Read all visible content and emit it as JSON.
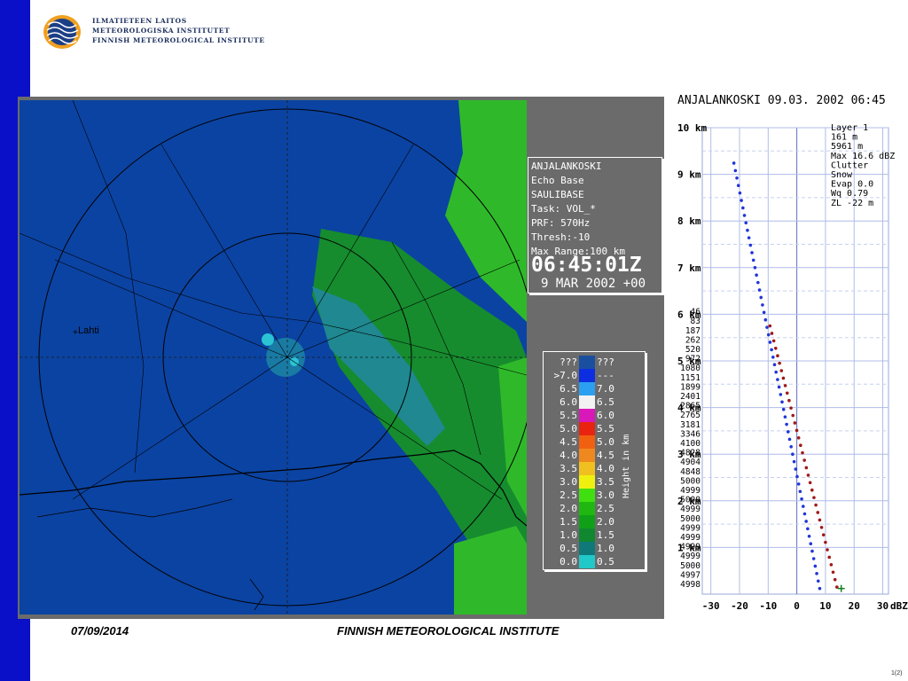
{
  "header": {
    "inst_fi": "ILMATIETEEN LAITOS",
    "inst_sv": "METEOROLOGISKA INSTITUTET",
    "inst_en": "FINNISH METEOROLOGICAL INSTITUTE"
  },
  "radar": {
    "place_label": "Lahti",
    "info": {
      "station": "ANJALANKOSKI",
      "product": "Echo Base",
      "product_id": "SAULIBASE",
      "task": "Task: VOL_*",
      "prf": "PRF: 570Hz",
      "thresh": "Thresh:-10",
      "range": "Max Range:100 km",
      "time": "06:45:01Z",
      "date": "9 MAR 2002 +00"
    },
    "legend": {
      "caption": "Height in km",
      "rows": [
        {
          "left": "???",
          "color": "#1a4fa0",
          "right": "???"
        },
        {
          "left": ">7.0",
          "color": "#0c2ee0",
          "right": "---"
        },
        {
          "left": "6.5",
          "color": "#2ba0f0",
          "right": "7.0"
        },
        {
          "left": "6.0",
          "color": "#f2f2f2",
          "right": "6.5"
        },
        {
          "left": "5.5",
          "color": "#d818b8",
          "right": "6.0"
        },
        {
          "left": "5.0",
          "color": "#e82410",
          "right": "5.5"
        },
        {
          "left": "4.5",
          "color": "#f06010",
          "right": "5.0"
        },
        {
          "left": "4.0",
          "color": "#f08820",
          "right": "4.5"
        },
        {
          "left": "3.5",
          "color": "#f0c020",
          "right": "4.0"
        },
        {
          "left": "3.0",
          "color": "#f0f010",
          "right": "3.5"
        },
        {
          "left": "2.5",
          "color": "#40e010",
          "right": "3.0"
        },
        {
          "left": "2.0",
          "color": "#20b810",
          "right": "2.5"
        },
        {
          "left": "1.5",
          "color": "#10a018",
          "right": "2.0"
        },
        {
          "left": "1.0",
          "color": "#108830",
          "right": "1.5"
        },
        {
          "left": "0.5",
          "color": "#107878",
          "right": "1.0"
        },
        {
          "left": "0.0",
          "color": "#20c8c8",
          "right": "0.5"
        }
      ]
    }
  },
  "profile": {
    "title": "ANJALANKOSKI 09.03. 2002 06:45",
    "info_lines": [
      "Layer 1",
      "161 m",
      "5961 m",
      "Max 16.6 dBZ",
      "Clutter",
      "Snow",
      "Evap 0.0",
      "Wq 0.79",
      "ZL -22 m"
    ],
    "x_unit": "dBZ",
    "x_ticks": [
      "-30",
      "-20",
      "-10",
      "0",
      "10",
      "20",
      "30"
    ],
    "y_ticks": [
      "1 km",
      "2 km",
      "3 km",
      "4 km",
      "5 km",
      "6 km",
      "7 km",
      "8 km",
      "9 km",
      "10 km"
    ],
    "row_labels": [
      "46",
      "83",
      "187",
      "262",
      "520",
      "972",
      "1080",
      "1151",
      "1899",
      "2401",
      "2865",
      "2765",
      "3181",
      "3346",
      "4100",
      "4828",
      "4904",
      "4848",
      "5000",
      "4999",
      "5000",
      "4999",
      "5000",
      "4999",
      "4999",
      "4999",
      "4999",
      "5000",
      "4997",
      "4998"
    ],
    "colors": {
      "series_1": "#2036d8",
      "series_2": "#a01818"
    }
  },
  "footer": {
    "date": "07/09/2014",
    "institute": "FINNISH METEOROLOGICAL INSTITUTE",
    "page": "1(2)"
  }
}
